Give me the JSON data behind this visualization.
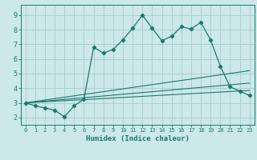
{
  "xlabel": "Humidex (Indice chaleur)",
  "bg_color": "#cce8e8",
  "line_color": "#1a7a6e",
  "grid_color": "#aad0d0",
  "xlim": [
    -0.5,
    23.5
  ],
  "ylim": [
    1.5,
    9.7
  ],
  "yticks": [
    2,
    3,
    4,
    5,
    6,
    7,
    8,
    9
  ],
  "xticks": [
    0,
    1,
    2,
    3,
    4,
    5,
    6,
    7,
    8,
    9,
    10,
    11,
    12,
    13,
    14,
    15,
    16,
    17,
    18,
    19,
    20,
    21,
    22,
    23
  ],
  "main_x": [
    0,
    1,
    2,
    3,
    4,
    5,
    6,
    7,
    8,
    9,
    10,
    11,
    12,
    13,
    14,
    15,
    16,
    17,
    18,
    19,
    20,
    21,
    22,
    23
  ],
  "main_y": [
    3.0,
    2.8,
    2.65,
    2.5,
    2.05,
    2.8,
    3.25,
    6.8,
    6.4,
    6.65,
    7.3,
    8.1,
    9.0,
    8.1,
    7.25,
    7.55,
    8.2,
    8.05,
    8.5,
    7.3,
    5.5,
    4.1,
    3.8,
    3.5
  ],
  "line1_x": [
    0,
    23
  ],
  "line1_y": [
    3.0,
    5.2
  ],
  "line2_x": [
    0,
    23
  ],
  "line2_y": [
    3.0,
    4.35
  ],
  "line3_x": [
    0,
    23
  ],
  "line3_y": [
    3.0,
    3.85
  ]
}
